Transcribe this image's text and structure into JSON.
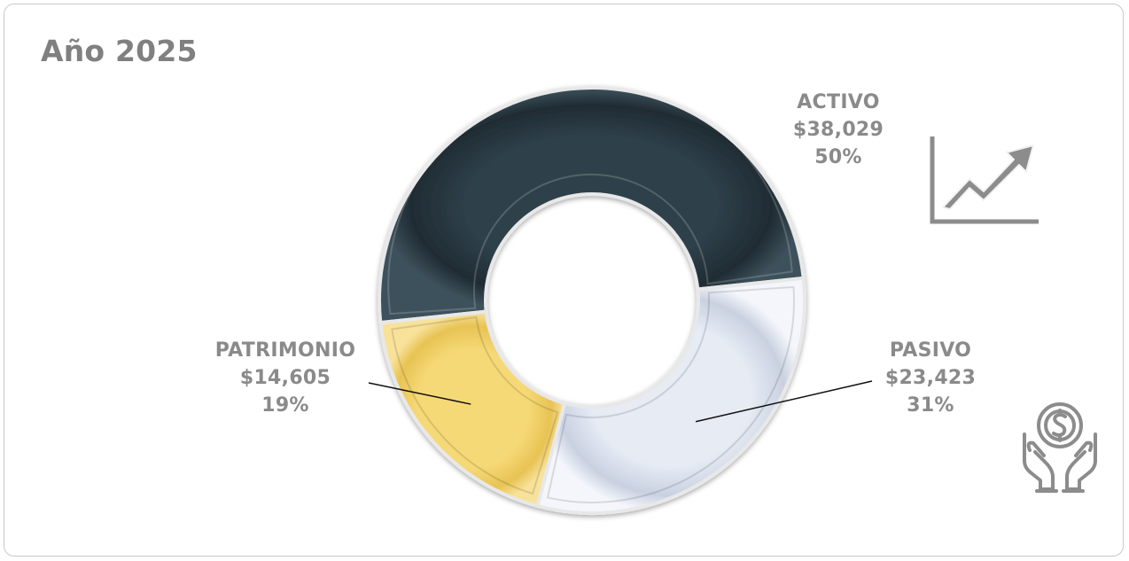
{
  "header": {
    "title": "Año 2025"
  },
  "colors": {
    "activo": "#233139",
    "pasivo": "#d3dae8",
    "patrimonio": "#efcd61",
    "label": "#8a8a8a",
    "icon": "#8c8c8c"
  },
  "icons": [
    "growth-chart-icon",
    "hands-holding-coin-icon"
  ],
  "chart_data": {
    "type": "pie",
    "variant": "doughnut",
    "title": "Año 2025",
    "slices": [
      {
        "key": "activo",
        "name": "ACTIVO",
        "value": 38029,
        "value_label": "$38,029",
        "percent_label": "50%"
      },
      {
        "key": "pasivo",
        "name": "PASIVO",
        "value": 23423,
        "value_label": "$23,423",
        "percent_label": "31%"
      },
      {
        "key": "patrimonio",
        "name": "PATRIMONIO",
        "value": 14605,
        "value_label": "$14,605",
        "percent_label": "19%"
      }
    ]
  }
}
